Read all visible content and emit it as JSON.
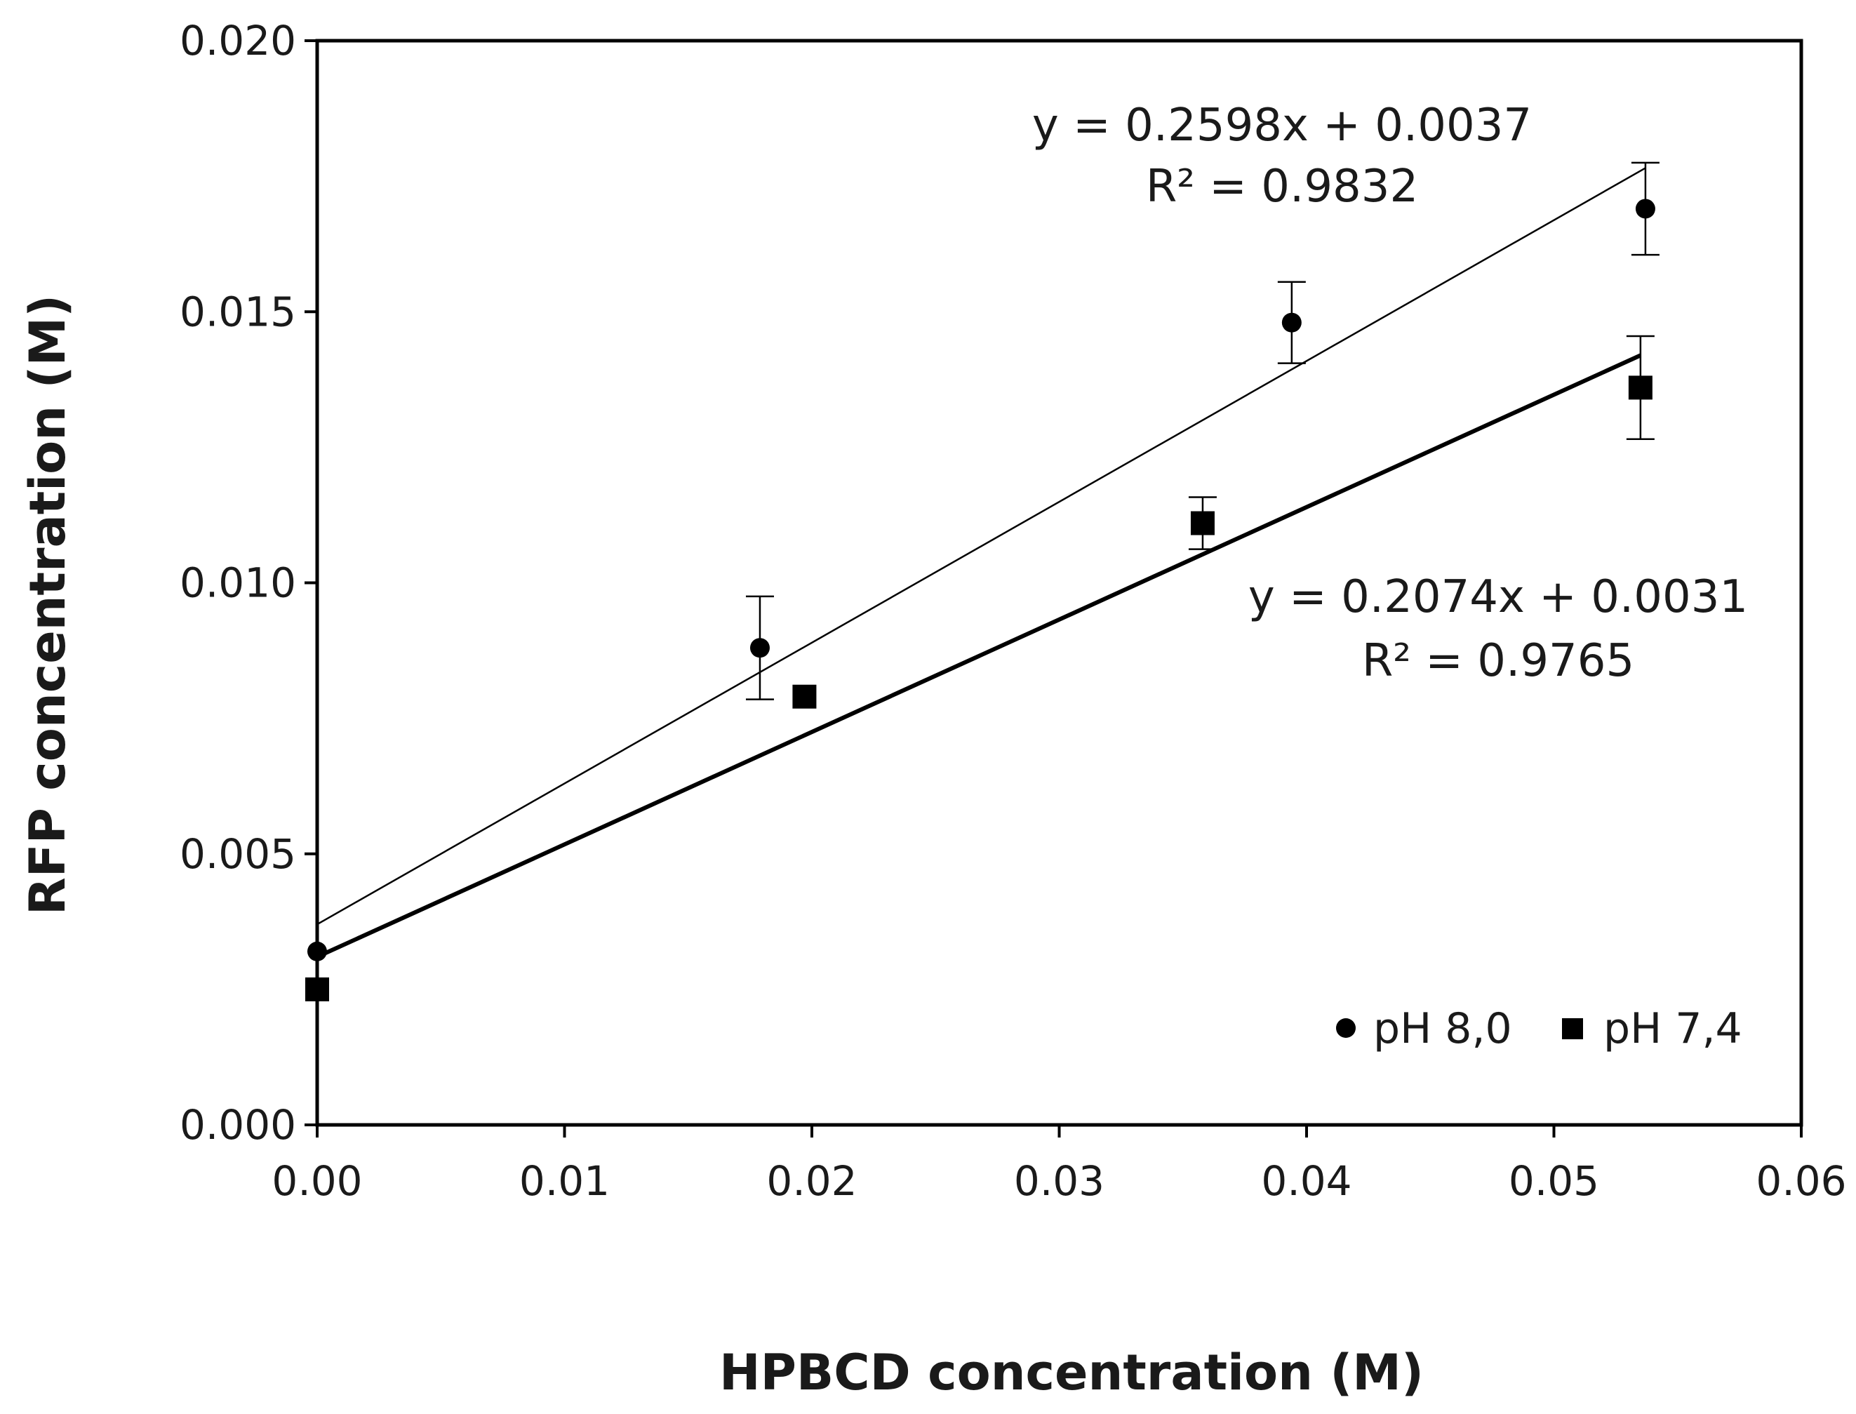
{
  "chart_data": {
    "type": "scatter",
    "title": "",
    "xlabel": "HPBCD concentration (M)",
    "ylabel": "RFP concentration (M)",
    "xlim": [
      0,
      0.06
    ],
    "ylim": [
      0,
      0.02
    ],
    "x_ticks": [
      "0.00",
      "0.01",
      "0.02",
      "0.03",
      "0.04",
      "0.05",
      "0.06"
    ],
    "y_ticks": [
      "0.000",
      "0.005",
      "0.010",
      "0.015",
      "0.020"
    ],
    "x_tick_values": [
      0,
      0.01,
      0.02,
      0.03,
      0.04,
      0.05,
      0.06
    ],
    "y_tick_values": [
      0,
      0.005,
      0.01,
      0.015,
      0.02
    ],
    "grid": false,
    "legend_position": "bottom-right",
    "series": [
      {
        "name": "pH 8,0",
        "marker": "circle",
        "line_weight": "thin",
        "color": "#000000",
        "x": [
          0.0,
          0.0179,
          0.0394,
          0.0537
        ],
        "y": [
          0.0032,
          0.0088,
          0.0148,
          0.0169
        ],
        "err": [
          0.0,
          0.00095,
          0.00075,
          0.00085
        ],
        "trendline": {
          "slope": 0.2598,
          "intercept": 0.0037,
          "x_range": [
            0,
            0.0537
          ],
          "equation": "y = 0.2598x + 0.0037",
          "r2": "R² = 0.9832"
        }
      },
      {
        "name": "pH 7,4",
        "marker": "square",
        "line_weight": "thick",
        "color": "#000000",
        "x": [
          0.0,
          0.0197,
          0.0358,
          0.0535
        ],
        "y": [
          0.0025,
          0.0079,
          0.0111,
          0.0136
        ],
        "err": [
          0.0,
          0.0,
          0.00048,
          0.00095
        ],
        "trendline": {
          "slope": 0.2074,
          "intercept": 0.0031,
          "x_range": [
            0,
            0.0535
          ],
          "equation": "y = 0.2074x + 0.0031",
          "r2": "R² = 0.9765"
        }
      }
    ]
  }
}
